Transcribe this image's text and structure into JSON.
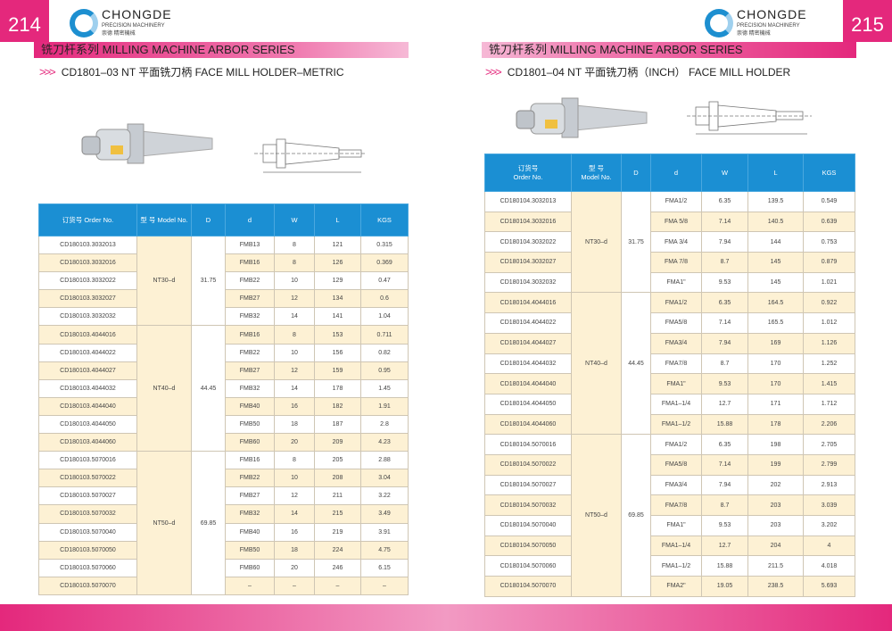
{
  "left": {
    "page_number": "214",
    "brand": "CHONGDE",
    "brand_sub": "PRECISION MACHINERY",
    "brand_cn": "崇德 精密機械",
    "series": "铣刀杆系列  MILLING MACHINE ARBOR SERIES",
    "subtitle": "CD1801–03 NT 平面铣刀柄 FACE MILL HOLDER–METRIC",
    "headers": [
      "订货号 Order No.",
      "型 号 Model No.",
      "D",
      "d",
      "W",
      "L",
      "KGS"
    ],
    "groups": [
      {
        "model": "NT30–d",
        "D": "31.75",
        "rows": [
          [
            "CD180103.3032013",
            "FMB13",
            "8",
            "121",
            "0.315"
          ],
          [
            "CD180103.3032016",
            "FMB16",
            "8",
            "126",
            "0.369"
          ],
          [
            "CD180103.3032022",
            "FMB22",
            "10",
            "129",
            "0.47"
          ],
          [
            "CD180103.3032027",
            "FMB27",
            "12",
            "134",
            "0.6"
          ],
          [
            "CD180103.3032032",
            "FMB32",
            "14",
            "141",
            "1.04"
          ]
        ]
      },
      {
        "model": "NT40–d",
        "D": "44.45",
        "rows": [
          [
            "CD180103.4044016",
            "FMB16",
            "8",
            "153",
            "0.711"
          ],
          [
            "CD180103.4044022",
            "FMB22",
            "10",
            "156",
            "0.82"
          ],
          [
            "CD180103.4044027",
            "FMB27",
            "12",
            "159",
            "0.95"
          ],
          [
            "CD180103.4044032",
            "FMB32",
            "14",
            "178",
            "1.45"
          ],
          [
            "CD180103.4044040",
            "FMB40",
            "16",
            "182",
            "1.91"
          ],
          [
            "CD180103.4044050",
            "FMB50",
            "18",
            "187",
            "2.8"
          ],
          [
            "CD180103.4044060",
            "FMB60",
            "20",
            "209",
            "4.23"
          ]
        ]
      },
      {
        "model": "NT50–d",
        "D": "69.85",
        "rows": [
          [
            "CD180103.5070016",
            "FMB16",
            "8",
            "205",
            "2.88"
          ],
          [
            "CD180103.5070022",
            "FMB22",
            "10",
            "208",
            "3.04"
          ],
          [
            "CD180103.5070027",
            "FMB27",
            "12",
            "211",
            "3.22"
          ],
          [
            "CD180103.5070032",
            "FMB32",
            "14",
            "215",
            "3.49"
          ],
          [
            "CD180103.5070040",
            "FMB40",
            "16",
            "219",
            "3.91"
          ],
          [
            "CD180103.5070050",
            "FMB50",
            "18",
            "224",
            "4.75"
          ],
          [
            "CD180103.5070060",
            "FMB60",
            "20",
            "246",
            "6.15"
          ],
          [
            "CD180103.5070070",
            "–",
            "–",
            "–",
            "–"
          ]
        ]
      }
    ]
  },
  "right": {
    "page_number": "215",
    "brand": "CHONGDE",
    "brand_sub": "PRECISION MACHINERY",
    "brand_cn": "崇德 精密機械",
    "series": "铣刀杆系列  MILLING MACHINE ARBOR SERIES",
    "subtitle": "CD1801–04 NT 平面铣刀柄（INCH） FACE MILL HOLDER",
    "headers": [
      "订货号\nOrder No.",
      "型 号\nModel No.",
      "D",
      "d",
      "W",
      "L",
      "KGS"
    ],
    "groups": [
      {
        "model": "NT30–d",
        "D": "31.75",
        "rows": [
          [
            "CD180104.3032013",
            "FMA1/2",
            "6.35",
            "139.5",
            "0.549"
          ],
          [
            "CD180104.3032016",
            "FMA 5/8",
            "7.14",
            "140.5",
            "0.639"
          ],
          [
            "CD180104.3032022",
            "FMA 3/4",
            "7.94",
            "144",
            "0.753"
          ],
          [
            "CD180104.3032027",
            "FMA 7/8",
            "8.7",
            "145",
            "0.879"
          ],
          [
            "CD180104.3032032",
            "FMA1\"",
            "9.53",
            "145",
            "1.021"
          ]
        ]
      },
      {
        "model": "NT40–d",
        "D": "44.45",
        "rows": [
          [
            "CD180104.4044016",
            "FMA1/2",
            "6.35",
            "164.5",
            "0.922"
          ],
          [
            "CD180104.4044022",
            "FMA5/8",
            "7.14",
            "165.5",
            "1.012"
          ],
          [
            "CD180104.4044027",
            "FMA3/4",
            "7.94",
            "169",
            "1.126"
          ],
          [
            "CD180104.4044032",
            "FMA7/8",
            "8.7",
            "170",
            "1.252"
          ],
          [
            "CD180104.4044040",
            "FMA1\"",
            "9.53",
            "170",
            "1.415"
          ],
          [
            "CD180104.4044050",
            "FMA1–1/4",
            "12.7",
            "171",
            "1.712"
          ],
          [
            "CD180104.4044060",
            "FMA1–1/2",
            "15.88",
            "178",
            "2.206"
          ]
        ]
      },
      {
        "model": "NT50–d",
        "D": "69.85",
        "rows": [
          [
            "CD180104.5070016",
            "FMA1/2",
            "6.35",
            "198",
            "2.705"
          ],
          [
            "CD180104.5070022",
            "FMA5/8",
            "7.14",
            "199",
            "2.799"
          ],
          [
            "CD180104.5070027",
            "FMA3/4",
            "7.94",
            "202",
            "2.913"
          ],
          [
            "CD180104.5070032",
            "FMA7/8",
            "8.7",
            "203",
            "3.039"
          ],
          [
            "CD180104.5070040",
            "FMA1\"",
            "9.53",
            "203",
            "3.202"
          ],
          [
            "CD180104.5070050",
            "FMA1–1/4",
            "12.7",
            "204",
            "4"
          ],
          [
            "CD180104.5070060",
            "FMA1–1/2",
            "15.88",
            "211.5",
            "4.018"
          ],
          [
            "CD180104.5070070",
            "FMA2\"",
            "19.05",
            "238.5",
            "5.693"
          ]
        ]
      }
    ]
  },
  "colors": {
    "accent": "#e4287c",
    "header_blue": "#1b8fd3",
    "row_alt": "#fdf1d4"
  }
}
